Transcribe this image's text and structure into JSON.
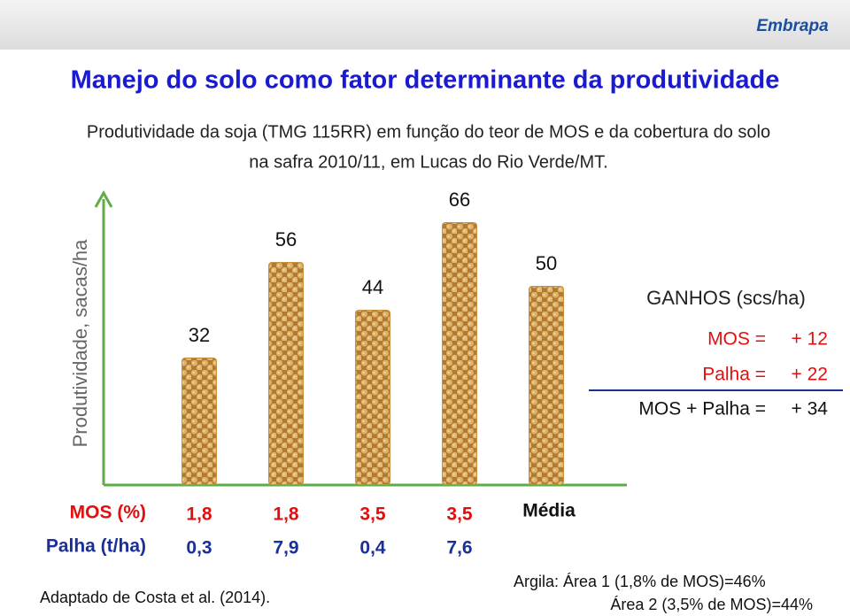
{
  "logo": "Embrapa",
  "chart_data": {
    "type": "bar",
    "title": "Manejo do solo como fator determinante da produtividade",
    "subtitle": [
      "Produtividade da soja (TMG 115RR) em função do teor de MOS e da cobertura do solo",
      "na safra 2010/11, em Lucas do Rio Verde/MT."
    ],
    "y_label": "Produtividade, sacas/ha",
    "categories": [
      null,
      null,
      null,
      null,
      "Média"
    ],
    "values": [
      32,
      56,
      44,
      66,
      50
    ],
    "color": "#c98f3e",
    "ylim": [
      0,
      70
    ],
    "rows": [
      {
        "label": "MOS (%)",
        "cells": [
          "1,8",
          "1,8",
          "3,5",
          "3,5"
        ]
      },
      {
        "label": "Palha (t/ha)",
        "cells": [
          "0,3",
          "7,9",
          "0,4",
          "7,6"
        ]
      }
    ]
  },
  "gains": {
    "title": "GANHOS (scs/ha)",
    "lines": [
      {
        "label": "MOS =",
        "value": "+ 12"
      },
      {
        "label": "Palha =",
        "value": "+ 22"
      },
      {
        "label": "MOS + Palha =",
        "value": "+ 34"
      }
    ]
  },
  "source": "Adaptado de Costa et al. (2014).",
  "notes": [
    "Argila: Área 1 (1,8% de MOS)=46%",
    "Área 2 (3,5% de MOS)=44%"
  ]
}
